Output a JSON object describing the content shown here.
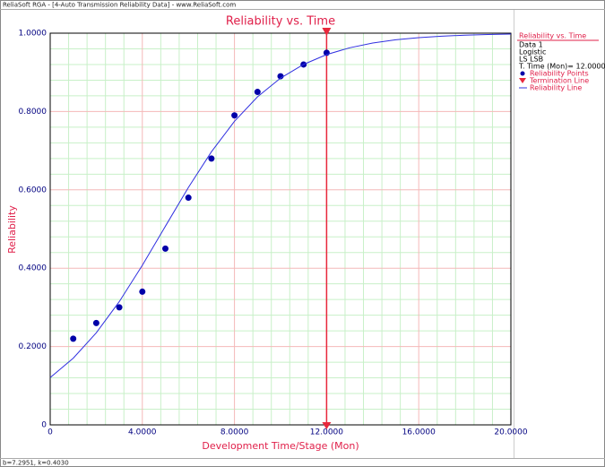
{
  "window_title": "ReliaSoft RGA - [4-Auto Transmission Reliability Data] - www.ReliaSoft.com",
  "footer": "b=7.2951, k=0.4030",
  "chart_data": {
    "type": "scatter",
    "title": "Reliability vs. Time",
    "xlabel": "Development Time/Stage (Mon)",
    "ylabel": "Reliability",
    "xlim": [
      0,
      20
    ],
    "ylim": [
      0,
      1
    ],
    "xticks": [
      0,
      {
        "value": 4,
        "label": "4.0000"
      },
      {
        "value": 8,
        "label": "8.0000"
      },
      {
        "value": 12,
        "label": "12.0000"
      },
      {
        "value": 16,
        "label": "16.0000"
      },
      {
        "value": 20,
        "label": "20.0000"
      }
    ],
    "yticks": [
      0,
      {
        "value": 0.2,
        "label": "0.2000"
      },
      {
        "value": 0.4,
        "label": "0.4000"
      },
      {
        "value": 0.6,
        "label": "0.6000"
      },
      {
        "value": 0.8,
        "label": "0.8000"
      },
      {
        "value": 1,
        "label": "1.0000"
      }
    ],
    "grid": true,
    "minor_grid_divisions": 5,
    "legend_title": "Reliability vs. Time",
    "legend_info": [
      "Data 1",
      "Logistic",
      "LS LSB",
      "T. Time (Mon)= 12.0000"
    ],
    "series": [
      {
        "name": "Reliability Points",
        "mode": "markers",
        "color": "#0000a8",
        "x": [
          1,
          2,
          3,
          4,
          5,
          6,
          7,
          8,
          9,
          10,
          11,
          12
        ],
        "values": [
          0.22,
          0.26,
          0.3,
          0.34,
          0.45,
          0.58,
          0.68,
          0.79,
          0.85,
          0.89,
          0.92,
          0.95
        ]
      },
      {
        "name": "Reliability Line",
        "mode": "lines",
        "color": "#3030e0",
        "x": [
          0,
          1,
          2,
          3,
          4,
          5,
          6,
          7,
          8,
          9,
          10,
          11,
          12,
          13,
          14,
          15,
          16,
          17,
          18,
          19,
          20
        ],
        "values": [
          0.1206,
          0.1702,
          0.2349,
          0.3147,
          0.4073,
          0.507,
          0.6061,
          0.6972,
          0.775,
          0.8375,
          0.8852,
          0.9202,
          0.9453,
          0.9627,
          0.9748,
          0.983,
          0.9886,
          0.9923,
          0.9949,
          0.9966,
          0.9977
        ]
      }
    ],
    "termination": {
      "name": "Termination Line",
      "x": 12,
      "color": "#e8283c"
    }
  }
}
